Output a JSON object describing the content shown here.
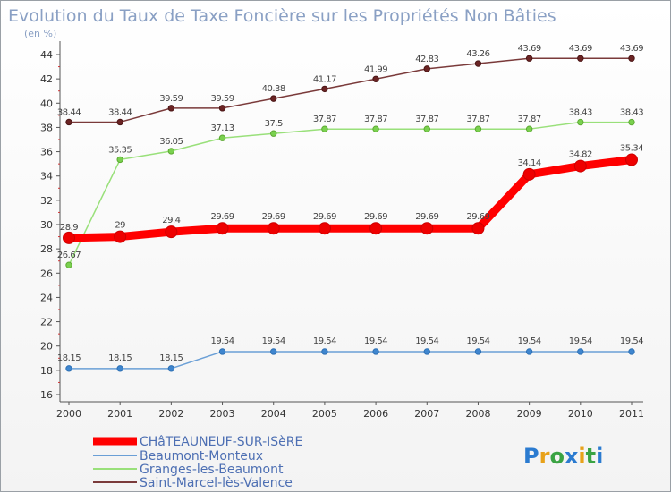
{
  "chart_data": {
    "type": "line",
    "title": "Evolution du Taux de Taxe Foncière sur les Propriétés Non Bâties",
    "subtitle": "(en %)",
    "x": [
      "2000",
      "2001",
      "2002",
      "2003",
      "2004",
      "2005",
      "2006",
      "2007",
      "2008",
      "2009",
      "2010",
      "2011"
    ],
    "ylim": [
      16,
      44
    ],
    "yticks": [
      16,
      18,
      20,
      22,
      24,
      26,
      28,
      30,
      32,
      34,
      36,
      38,
      40,
      42,
      44
    ],
    "grid": false,
    "legend_position": "bottom-left",
    "series": [
      {
        "name": "CHâTEAUNEUF-SUR-ISèRE",
        "color": "#ff0000",
        "values": [
          28.9,
          29,
          29.4,
          29.69,
          29.69,
          29.69,
          29.69,
          29.69,
          29.69,
          34.14,
          34.82,
          35.34
        ],
        "labels": [
          "28.9",
          "29",
          "29.4",
          "29.69",
          "29.69",
          "29.69",
          "29.69",
          "29.69",
          "29.69",
          "34.14",
          "34.82",
          "35.34"
        ]
      },
      {
        "name": "Beaumont-Monteux",
        "color": "#6a9fd6",
        "values": [
          18.15,
          18.15,
          18.15,
          19.54,
          19.54,
          19.54,
          19.54,
          19.54,
          19.54,
          19.54,
          19.54,
          19.54
        ],
        "labels": [
          "18.15",
          "18.15",
          "18.15",
          "19.54",
          "19.54",
          "19.54",
          "19.54",
          "19.54",
          "19.54",
          "19.54",
          "19.54",
          "19.54"
        ]
      },
      {
        "name": "Granges-les-Beaumont",
        "color": "#99e07a",
        "values": [
          26.67,
          35.35,
          36.05,
          37.13,
          37.5,
          37.87,
          37.87,
          37.87,
          37.87,
          37.87,
          38.43,
          38.43
        ],
        "labels": [
          "26.67",
          "35.35",
          "36.05",
          "37.13",
          "37.5",
          "37.87",
          "37.87",
          "37.87",
          "37.87",
          "37.87",
          "38.43",
          "38.43"
        ]
      },
      {
        "name": "Saint-Marcel-lès-Valence",
        "color": "#7a3a3a",
        "values": [
          38.44,
          38.44,
          39.59,
          39.59,
          40.38,
          41.17,
          41.99,
          42.83,
          43.26,
          43.69,
          43.69,
          43.69
        ],
        "labels": [
          "38.44",
          "38.44",
          "39.59",
          "39.59",
          "40.38",
          "41.17",
          "41.99",
          "42.83",
          "43.26",
          "43.69",
          "43.69",
          "43.69"
        ]
      }
    ]
  },
  "logo": {
    "text": "Proxiti"
  }
}
